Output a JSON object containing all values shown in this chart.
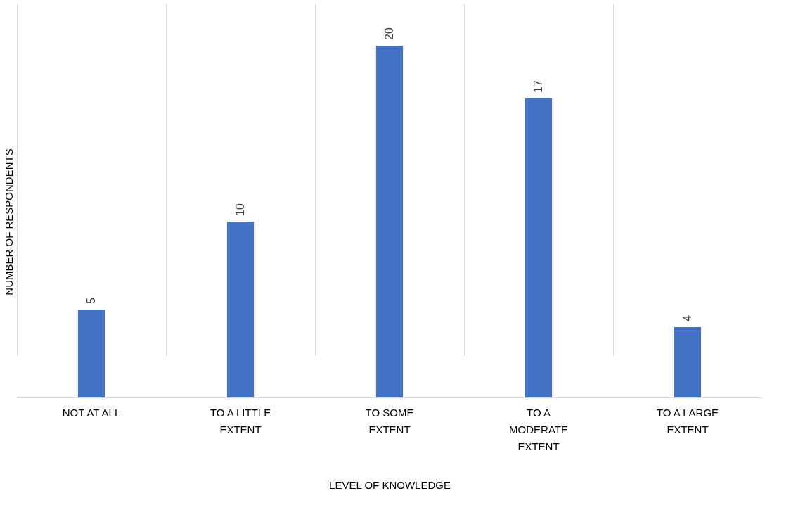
{
  "chart_data": {
    "type": "bar",
    "xlabel": "LEVEL OF KNOWLEDGE",
    "ylabel": "NUMBER OF RESPONDENTS",
    "categories": [
      "NOT AT ALL",
      "TO A LITTLE EXTENT",
      "TO SOME EXTENT",
      "TO A MODERATE EXTENT",
      "TO A LARGE EXTENT"
    ],
    "values": [
      5,
      10,
      20,
      17,
      4
    ],
    "color": "#4472c4",
    "data_labels": true,
    "grid": "x"
  }
}
